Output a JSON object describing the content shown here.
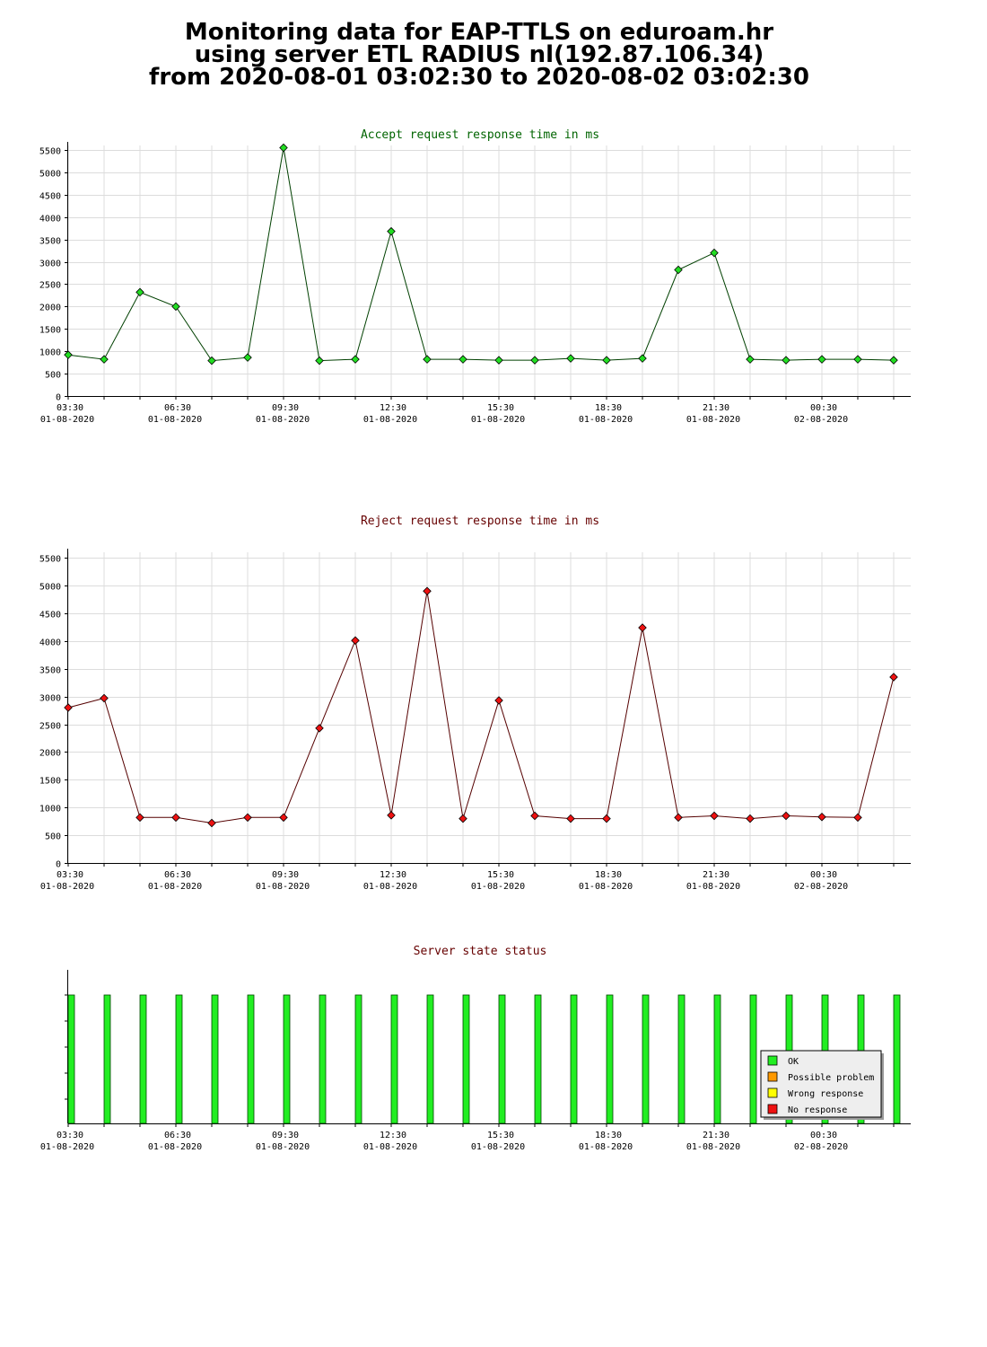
{
  "header": {
    "line1": "Monitoring data for EAP-TTLS on eduroam.hr",
    "line2": "using server ETL RADIUS nl(192.87.106.34)",
    "line3": "from 2020-08-01 03:02:30 to 2020-08-02 03:02:30"
  },
  "chart_data": [
    {
      "type": "line",
      "title": "Accept request response time in ms",
      "title_color": "#006400",
      "line_color": "#004000",
      "marker_color": "#22dd22",
      "x_ticks": [
        {
          "time": "03:30",
          "date": "01-08-2020"
        },
        {
          "time": "06:30",
          "date": "01-08-2020"
        },
        {
          "time": "09:30",
          "date": "01-08-2020"
        },
        {
          "time": "12:30",
          "date": "01-08-2020"
        },
        {
          "time": "15:30",
          "date": "01-08-2020"
        },
        {
          "time": "18:30",
          "date": "01-08-2020"
        },
        {
          "time": "21:30",
          "date": "01-08-2020"
        },
        {
          "time": "00:30",
          "date": "02-08-2020"
        }
      ],
      "y_ticks": [
        0,
        500,
        1000,
        1500,
        2000,
        2500,
        3000,
        3500,
        4000,
        4500,
        5000,
        5500
      ],
      "ylim": [
        0,
        5600
      ],
      "grid": true,
      "values": [
        920,
        820,
        2320,
        2000,
        790,
        860,
        5550,
        790,
        820,
        3680,
        820,
        820,
        800,
        800,
        840,
        800,
        840,
        2820,
        3200,
        820,
        800,
        820,
        820,
        800
      ]
    },
    {
      "type": "line",
      "title": "Reject request response time in ms",
      "title_color": "#660000",
      "line_color": "#550000",
      "marker_color": "#ee1111",
      "x_ticks": [
        {
          "time": "03:30",
          "date": "01-08-2020"
        },
        {
          "time": "06:30",
          "date": "01-08-2020"
        },
        {
          "time": "09:30",
          "date": "01-08-2020"
        },
        {
          "time": "12:30",
          "date": "01-08-2020"
        },
        {
          "time": "15:30",
          "date": "01-08-2020"
        },
        {
          "time": "18:30",
          "date": "01-08-2020"
        },
        {
          "time": "21:30",
          "date": "01-08-2020"
        },
        {
          "time": "00:30",
          "date": "02-08-2020"
        }
      ],
      "y_ticks": [
        0,
        500,
        1000,
        1500,
        2000,
        2500,
        3000,
        3500,
        4000,
        4500,
        5000,
        5500
      ],
      "ylim": [
        0,
        5600
      ],
      "grid": true,
      "values": [
        2800,
        2970,
        820,
        820,
        720,
        820,
        820,
        2430,
        4010,
        860,
        4900,
        800,
        2930,
        850,
        800,
        800,
        4240,
        820,
        850,
        800,
        850,
        830,
        820,
        3350
      ]
    },
    {
      "type": "bar",
      "title": "Server state status",
      "title_color": "#660000",
      "x_ticks": [
        {
          "time": "03:30",
          "date": "01-08-2020"
        },
        {
          "time": "06:30",
          "date": "01-08-2020"
        },
        {
          "time": "09:30",
          "date": "01-08-2020"
        },
        {
          "time": "12:30",
          "date": "01-08-2020"
        },
        {
          "time": "15:30",
          "date": "01-08-2020"
        },
        {
          "time": "18:30",
          "date": "01-08-2020"
        },
        {
          "time": "21:30",
          "date": "01-08-2020"
        },
        {
          "time": "00:30",
          "date": "02-08-2020"
        }
      ],
      "states": [
        "OK",
        "OK",
        "OK",
        "OK",
        "OK",
        "OK",
        "OK",
        "OK",
        "OK",
        "OK",
        "OK",
        "OK",
        "OK",
        "OK",
        "OK",
        "OK",
        "OK",
        "OK",
        "OK",
        "OK",
        "OK",
        "OK",
        "OK",
        "OK"
      ],
      "legend": [
        {
          "label": "OK",
          "color": "#22ee22"
        },
        {
          "label": "Possible problem",
          "color": "#ff9900"
        },
        {
          "label": "Wrong response",
          "color": "#ffff00"
        },
        {
          "label": "No response",
          "color": "#ee1111"
        }
      ],
      "legend_position": "bottom-right"
    }
  ]
}
